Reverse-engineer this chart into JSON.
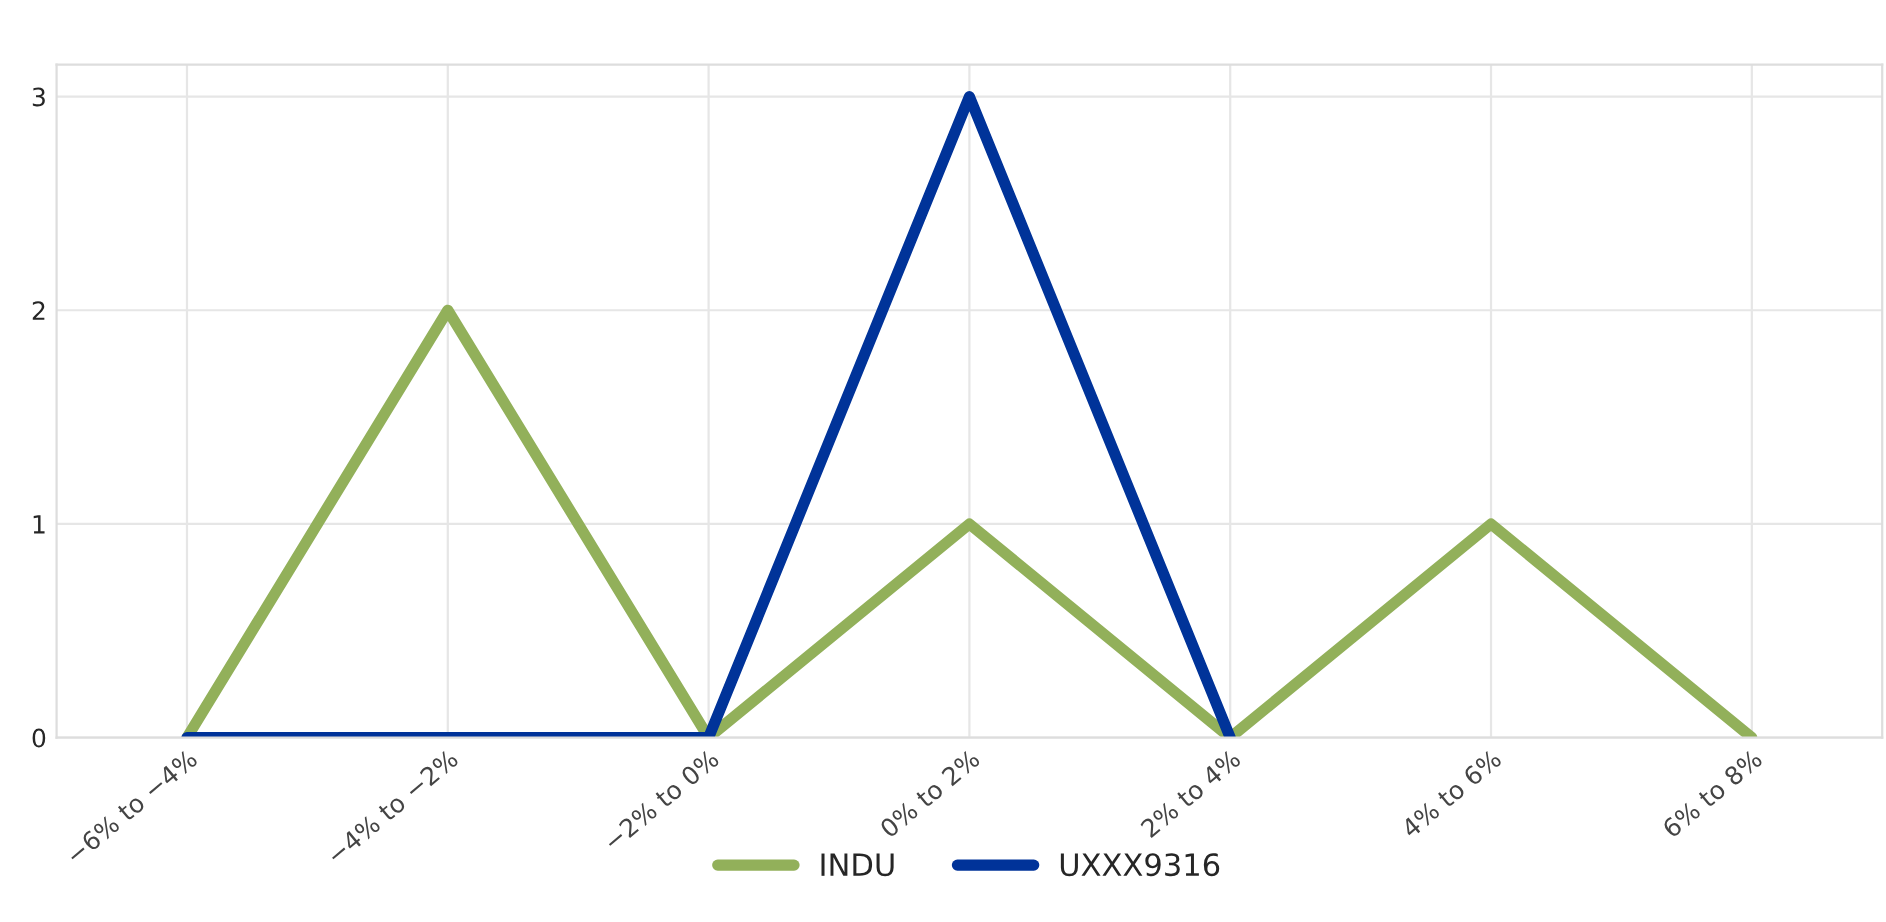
{
  "chart_data": {
    "type": "line",
    "categories": [
      "−6% to −4%",
      "−4% to −2%",
      "−2% to 0%",
      "0% to 2%",
      "2% to 4%",
      "4% to 6%",
      "6% to 8%"
    ],
    "series": [
      {
        "name": "INDU",
        "color": "#92b05a",
        "values": [
          0,
          2,
          0,
          1,
          0,
          1,
          0
        ]
      },
      {
        "name": "UXXX9316",
        "color": "#003399",
        "values": [
          0,
          0,
          0,
          3,
          0,
          null,
          null
        ]
      }
    ],
    "ylim": [
      0,
      3.15
    ],
    "yticks": [
      0,
      1,
      2,
      3
    ],
    "grid": true,
    "legend": "bottom",
    "marker": "none",
    "line_style": "solid"
  }
}
